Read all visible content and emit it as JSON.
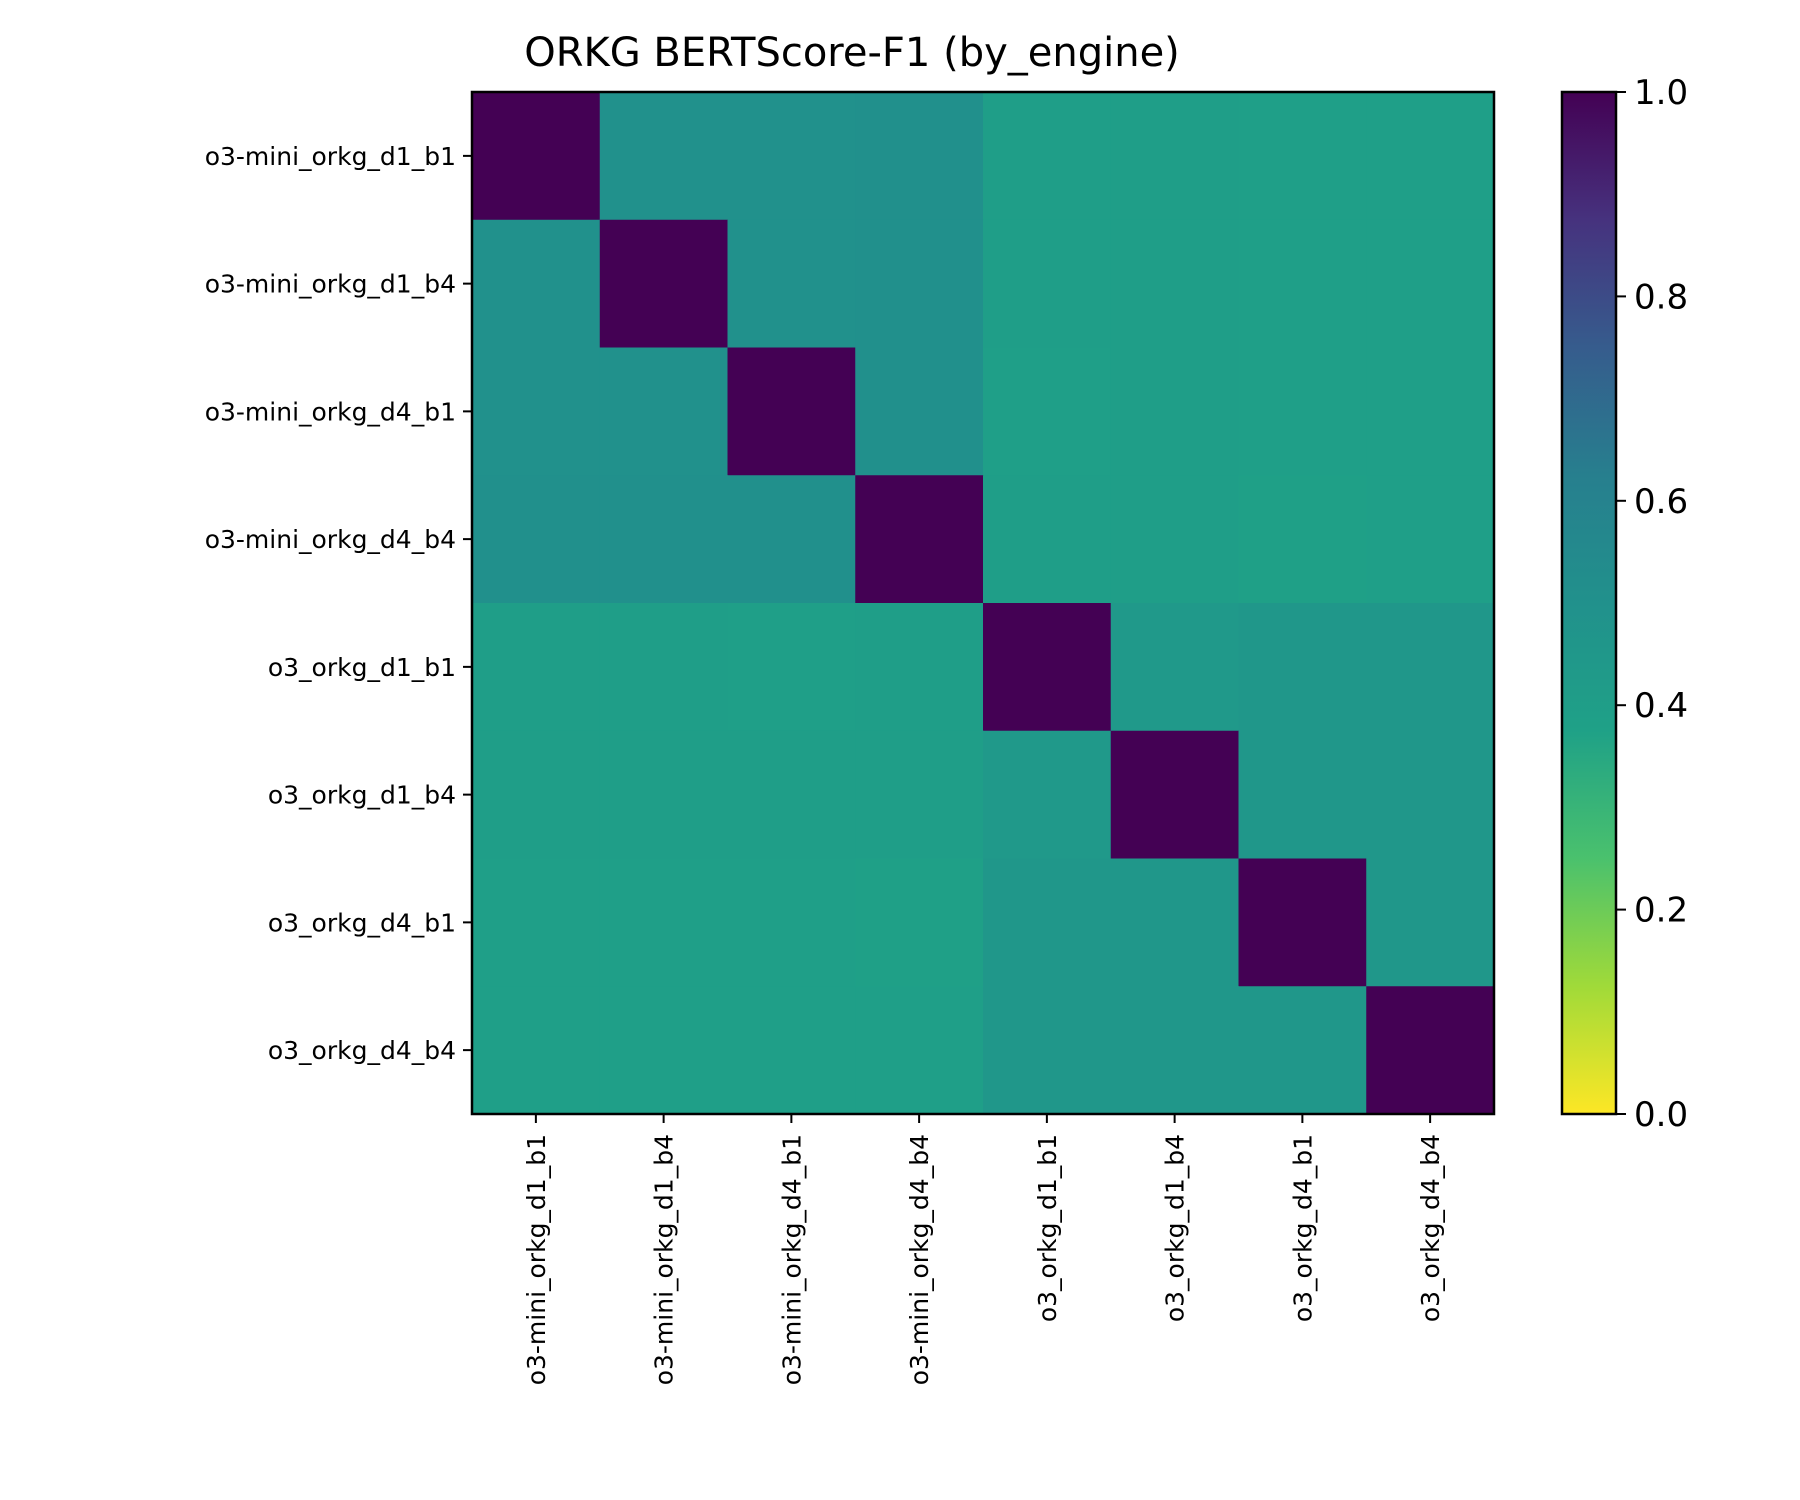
{
  "chart_data": {
    "type": "heatmap",
    "title": "ORKG BERTScore-F1 (by_engine)",
    "xlabel": "",
    "ylabel": "",
    "row_labels": [
      "o3-mini_orkg_d1_b1",
      "o3-mini_orkg_d1_b4",
      "o3-mini_orkg_d4_b1",
      "o3-mini_orkg_d4_b4",
      "o3_orkg_d1_b1",
      "o3_orkg_d1_b4",
      "o3_orkg_d4_b1",
      "o3_orkg_d4_b4"
    ],
    "col_labels": [
      "o3-mini_orkg_d1_b1",
      "o3-mini_orkg_d1_b4",
      "o3-mini_orkg_d4_b1",
      "o3-mini_orkg_d4_b4",
      "o3_orkg_d1_b1",
      "o3_orkg_d1_b4",
      "o3_orkg_d4_b1",
      "o3_orkg_d4_b4"
    ],
    "values": [
      [
        1.0,
        0.5,
        0.5,
        0.51,
        0.4,
        0.4,
        0.39,
        0.39
      ],
      [
        0.5,
        1.0,
        0.5,
        0.51,
        0.4,
        0.4,
        0.39,
        0.39
      ],
      [
        0.5,
        0.5,
        1.0,
        0.51,
        0.39,
        0.4,
        0.39,
        0.39
      ],
      [
        0.51,
        0.51,
        0.51,
        1.0,
        0.4,
        0.4,
        0.38,
        0.39
      ],
      [
        0.4,
        0.4,
        0.39,
        0.4,
        1.0,
        0.44,
        0.45,
        0.45
      ],
      [
        0.4,
        0.4,
        0.4,
        0.4,
        0.44,
        1.0,
        0.45,
        0.45
      ],
      [
        0.39,
        0.39,
        0.39,
        0.38,
        0.45,
        0.45,
        1.0,
        0.45
      ],
      [
        0.39,
        0.39,
        0.39,
        0.39,
        0.45,
        0.45,
        0.45,
        1.0
      ]
    ],
    "colormap": "viridis_r",
    "vmin": 0.0,
    "vmax": 1.0,
    "colorbar_ticks": [
      "0.0",
      "0.2",
      "0.4",
      "0.6",
      "0.8",
      "1.0"
    ],
    "grid": false
  }
}
